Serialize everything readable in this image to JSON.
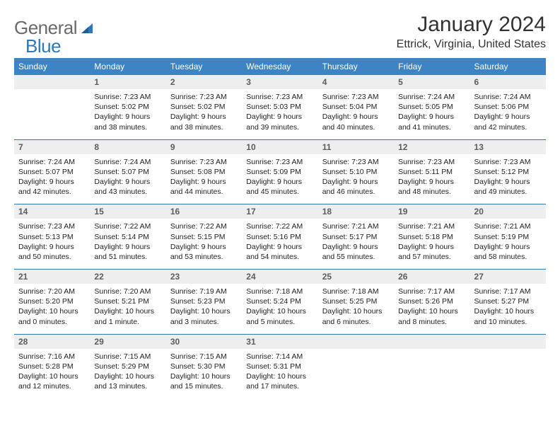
{
  "brand": {
    "name_a": "General",
    "name_b": "Blue"
  },
  "colors": {
    "header_bg": "#3c84c3",
    "header_fg": "#ffffff",
    "rule": "#2f78b8",
    "daynum_bg": "#eeeeef",
    "daynum_fg": "#5c5c5c",
    "text": "#222222",
    "logo_gray": "#6a6a6a",
    "logo_blue": "#2f78b8",
    "page_bg": "#ffffff"
  },
  "fonts": {
    "base_family": "Arial",
    "title_size_pt": 22,
    "body_size_pt": 8
  },
  "title": "January 2024",
  "location": "Ettrick, Virginia, United States",
  "dow": [
    "Sunday",
    "Monday",
    "Tuesday",
    "Wednesday",
    "Thursday",
    "Friday",
    "Saturday"
  ],
  "weeks": [
    [
      null,
      {
        "n": "1",
        "sr": "Sunrise: 7:23 AM",
        "ss": "Sunset: 5:02 PM",
        "dl1": "Daylight: 9 hours",
        "dl2": "and 38 minutes."
      },
      {
        "n": "2",
        "sr": "Sunrise: 7:23 AM",
        "ss": "Sunset: 5:02 PM",
        "dl1": "Daylight: 9 hours",
        "dl2": "and 38 minutes."
      },
      {
        "n": "3",
        "sr": "Sunrise: 7:23 AM",
        "ss": "Sunset: 5:03 PM",
        "dl1": "Daylight: 9 hours",
        "dl2": "and 39 minutes."
      },
      {
        "n": "4",
        "sr": "Sunrise: 7:23 AM",
        "ss": "Sunset: 5:04 PM",
        "dl1": "Daylight: 9 hours",
        "dl2": "and 40 minutes."
      },
      {
        "n": "5",
        "sr": "Sunrise: 7:24 AM",
        "ss": "Sunset: 5:05 PM",
        "dl1": "Daylight: 9 hours",
        "dl2": "and 41 minutes."
      },
      {
        "n": "6",
        "sr": "Sunrise: 7:24 AM",
        "ss": "Sunset: 5:06 PM",
        "dl1": "Daylight: 9 hours",
        "dl2": "and 42 minutes."
      }
    ],
    [
      {
        "n": "7",
        "sr": "Sunrise: 7:24 AM",
        "ss": "Sunset: 5:07 PM",
        "dl1": "Daylight: 9 hours",
        "dl2": "and 42 minutes."
      },
      {
        "n": "8",
        "sr": "Sunrise: 7:24 AM",
        "ss": "Sunset: 5:07 PM",
        "dl1": "Daylight: 9 hours",
        "dl2": "and 43 minutes."
      },
      {
        "n": "9",
        "sr": "Sunrise: 7:23 AM",
        "ss": "Sunset: 5:08 PM",
        "dl1": "Daylight: 9 hours",
        "dl2": "and 44 minutes."
      },
      {
        "n": "10",
        "sr": "Sunrise: 7:23 AM",
        "ss": "Sunset: 5:09 PM",
        "dl1": "Daylight: 9 hours",
        "dl2": "and 45 minutes."
      },
      {
        "n": "11",
        "sr": "Sunrise: 7:23 AM",
        "ss": "Sunset: 5:10 PM",
        "dl1": "Daylight: 9 hours",
        "dl2": "and 46 minutes."
      },
      {
        "n": "12",
        "sr": "Sunrise: 7:23 AM",
        "ss": "Sunset: 5:11 PM",
        "dl1": "Daylight: 9 hours",
        "dl2": "and 48 minutes."
      },
      {
        "n": "13",
        "sr": "Sunrise: 7:23 AM",
        "ss": "Sunset: 5:12 PM",
        "dl1": "Daylight: 9 hours",
        "dl2": "and 49 minutes."
      }
    ],
    [
      {
        "n": "14",
        "sr": "Sunrise: 7:23 AM",
        "ss": "Sunset: 5:13 PM",
        "dl1": "Daylight: 9 hours",
        "dl2": "and 50 minutes."
      },
      {
        "n": "15",
        "sr": "Sunrise: 7:22 AM",
        "ss": "Sunset: 5:14 PM",
        "dl1": "Daylight: 9 hours",
        "dl2": "and 51 minutes."
      },
      {
        "n": "16",
        "sr": "Sunrise: 7:22 AM",
        "ss": "Sunset: 5:15 PM",
        "dl1": "Daylight: 9 hours",
        "dl2": "and 53 minutes."
      },
      {
        "n": "17",
        "sr": "Sunrise: 7:22 AM",
        "ss": "Sunset: 5:16 PM",
        "dl1": "Daylight: 9 hours",
        "dl2": "and 54 minutes."
      },
      {
        "n": "18",
        "sr": "Sunrise: 7:21 AM",
        "ss": "Sunset: 5:17 PM",
        "dl1": "Daylight: 9 hours",
        "dl2": "and 55 minutes."
      },
      {
        "n": "19",
        "sr": "Sunrise: 7:21 AM",
        "ss": "Sunset: 5:18 PM",
        "dl1": "Daylight: 9 hours",
        "dl2": "and 57 minutes."
      },
      {
        "n": "20",
        "sr": "Sunrise: 7:21 AM",
        "ss": "Sunset: 5:19 PM",
        "dl1": "Daylight: 9 hours",
        "dl2": "and 58 minutes."
      }
    ],
    [
      {
        "n": "21",
        "sr": "Sunrise: 7:20 AM",
        "ss": "Sunset: 5:20 PM",
        "dl1": "Daylight: 10 hours",
        "dl2": "and 0 minutes."
      },
      {
        "n": "22",
        "sr": "Sunrise: 7:20 AM",
        "ss": "Sunset: 5:21 PM",
        "dl1": "Daylight: 10 hours",
        "dl2": "and 1 minute."
      },
      {
        "n": "23",
        "sr": "Sunrise: 7:19 AM",
        "ss": "Sunset: 5:23 PM",
        "dl1": "Daylight: 10 hours",
        "dl2": "and 3 minutes."
      },
      {
        "n": "24",
        "sr": "Sunrise: 7:18 AM",
        "ss": "Sunset: 5:24 PM",
        "dl1": "Daylight: 10 hours",
        "dl2": "and 5 minutes."
      },
      {
        "n": "25",
        "sr": "Sunrise: 7:18 AM",
        "ss": "Sunset: 5:25 PM",
        "dl1": "Daylight: 10 hours",
        "dl2": "and 6 minutes."
      },
      {
        "n": "26",
        "sr": "Sunrise: 7:17 AM",
        "ss": "Sunset: 5:26 PM",
        "dl1": "Daylight: 10 hours",
        "dl2": "and 8 minutes."
      },
      {
        "n": "27",
        "sr": "Sunrise: 7:17 AM",
        "ss": "Sunset: 5:27 PM",
        "dl1": "Daylight: 10 hours",
        "dl2": "and 10 minutes."
      }
    ],
    [
      {
        "n": "28",
        "sr": "Sunrise: 7:16 AM",
        "ss": "Sunset: 5:28 PM",
        "dl1": "Daylight: 10 hours",
        "dl2": "and 12 minutes."
      },
      {
        "n": "29",
        "sr": "Sunrise: 7:15 AM",
        "ss": "Sunset: 5:29 PM",
        "dl1": "Daylight: 10 hours",
        "dl2": "and 13 minutes."
      },
      {
        "n": "30",
        "sr": "Sunrise: 7:15 AM",
        "ss": "Sunset: 5:30 PM",
        "dl1": "Daylight: 10 hours",
        "dl2": "and 15 minutes."
      },
      {
        "n": "31",
        "sr": "Sunrise: 7:14 AM",
        "ss": "Sunset: 5:31 PM",
        "dl1": "Daylight: 10 hours",
        "dl2": "and 17 minutes."
      },
      null,
      null,
      null
    ]
  ]
}
